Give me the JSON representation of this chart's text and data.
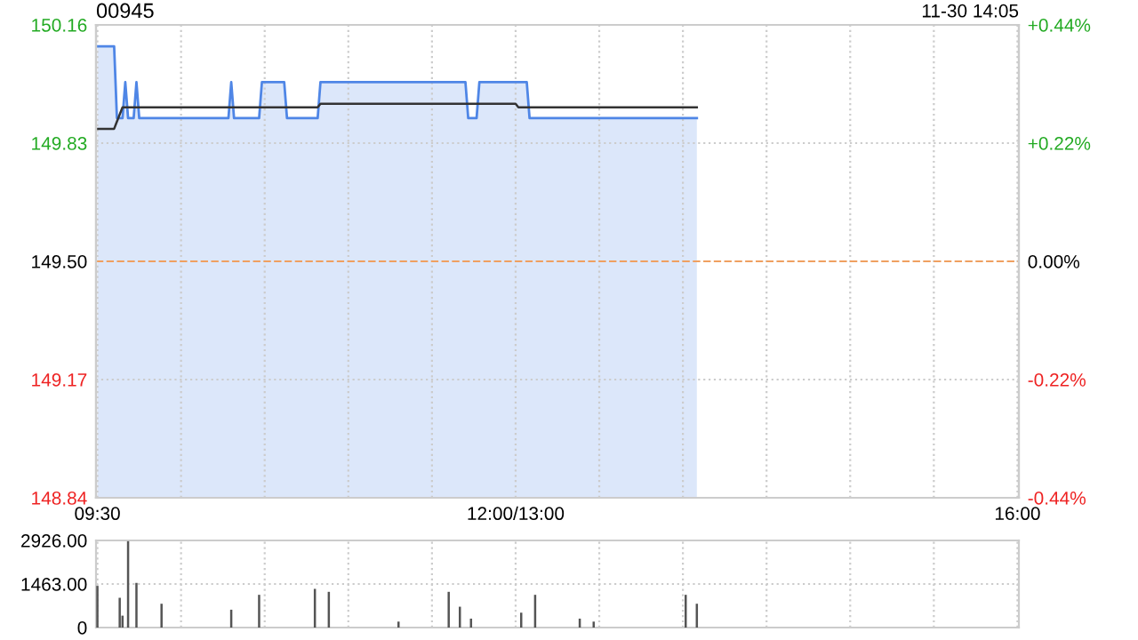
{
  "chart_data": [
    {
      "type": "line",
      "title": "00945",
      "annotations": [
        "11-30 14:05"
      ],
      "categories": [
        "09:30",
        null,
        null,
        null,
        null,
        null,
        null,
        null,
        null,
        null,
        null,
        null,
        null,
        null,
        null,
        null,
        null,
        null,
        null,
        null,
        null,
        null,
        null,
        null,
        null,
        null,
        null,
        null,
        null,
        null,
        null,
        null,
        null,
        null,
        null,
        null,
        null,
        null,
        null,
        null,
        null,
        null,
        null,
        null,
        null,
        null,
        null,
        null,
        null,
        null,
        null,
        null,
        null,
        null,
        null,
        null,
        null,
        null,
        null,
        null,
        null,
        null,
        null,
        null,
        null,
        null,
        null,
        null,
        null,
        null,
        null,
        null,
        null,
        null,
        null,
        null,
        null,
        null,
        null,
        null,
        null,
        null,
        null,
        null,
        null,
        null,
        null,
        null,
        null,
        null,
        null,
        null,
        null,
        null,
        null,
        null,
        null,
        null,
        null,
        null,
        null,
        null,
        null,
        null,
        null,
        null,
        null,
        null,
        null,
        null,
        null,
        null,
        null,
        null,
        null,
        null,
        null,
        null,
        null,
        null,
        null,
        null,
        null,
        null,
        null,
        null,
        null,
        null,
        null,
        null,
        null,
        null,
        null,
        null,
        null,
        null,
        null,
        null,
        null,
        null,
        null,
        null,
        null,
        null,
        null,
        null,
        null,
        null,
        null,
        null,
        "12:00/13:00",
        null,
        null,
        null,
        null,
        null,
        null,
        null,
        null,
        null,
        null,
        null,
        null,
        null,
        null,
        null,
        null,
        null,
        null,
        null,
        null,
        null,
        null,
        null,
        null,
        null,
        null,
        null,
        null,
        null,
        null,
        null,
        null,
        null,
        null,
        null,
        null,
        null,
        null,
        null,
        null,
        null,
        null,
        null,
        null,
        null,
        null,
        null,
        null,
        null,
        null,
        null,
        null,
        null,
        null,
        null,
        null,
        null,
        null,
        null,
        null,
        null,
        null,
        null,
        null,
        null,
        null,
        null,
        null,
        null,
        null,
        null,
        null,
        null,
        null,
        null,
        null,
        null,
        null,
        null,
        null,
        null,
        null,
        null,
        null,
        null,
        null,
        null,
        null,
        null,
        null,
        null,
        null,
        null,
        null,
        null,
        null,
        null,
        null,
        null,
        null,
        null,
        null,
        null,
        null,
        null,
        null,
        null,
        null,
        null,
        null,
        null,
        null,
        null,
        null,
        null,
        null,
        null,
        null,
        null,
        null,
        null,
        null,
        null,
        null,
        null,
        null,
        null,
        null,
        null,
        null,
        null,
        null,
        null,
        null,
        null,
        null,
        null,
        null,
        null,
        null,
        null,
        null,
        null,
        null,
        null,
        null,
        null,
        null,
        null,
        null,
        null,
        null,
        null,
        null,
        null,
        null,
        null,
        null,
        null,
        null,
        null,
        null,
        null,
        null,
        null,
        null,
        null,
        null,
        null,
        null,
        null,
        null,
        null,
        null,
        null,
        null,
        null,
        null,
        null,
        "16:00"
      ],
      "ylim": [
        148.84,
        150.16
      ],
      "yticks": [
        {
          "value": 148.84,
          "label": "148.84"
        },
        {
          "value": 149.17,
          "label": "149.17"
        },
        {
          "value": 149.5,
          "label": "149.50"
        },
        {
          "value": 149.83,
          "label": "149.83"
        },
        {
          "value": 150.16,
          "label": "150.16"
        }
      ],
      "y2lim": [
        -0.44,
        0.44
      ],
      "y2ticks": [
        {
          "value": -0.44,
          "label": "-0.44%"
        },
        {
          "value": -0.22,
          "label": "-0.22%"
        },
        {
          "value": 0,
          "label": "0.00%"
        },
        {
          "value": 0.22,
          "label": "+0.22%"
        },
        {
          "value": 0.44,
          "label": "+0.44%"
        }
      ],
      "grid": true,
      "ref_lines": [
        {
          "axis": "y",
          "value": 149.5,
          "color": "#f0a060",
          "line_style": "dashed"
        }
      ],
      "series": [
        {
          "type": "area",
          "color": "#4f86e6",
          "values": [
            150.1,
            150.1,
            150.1,
            150.1,
            150.1,
            150.1,
            150.1,
            149.9,
            149.9,
            149.9,
            150.0,
            149.9,
            149.9,
            149.9,
            150.0,
            149.9,
            149.9,
            149.9,
            149.9,
            149.9,
            149.9,
            149.9,
            149.9,
            149.9,
            149.9,
            149.9,
            149.9,
            149.9,
            149.9,
            149.9,
            149.9,
            149.9,
            149.9,
            149.9,
            149.9,
            149.9,
            149.9,
            149.9,
            149.9,
            149.9,
            149.9,
            149.9,
            149.9,
            149.9,
            149.9,
            149.9,
            149.9,
            149.9,
            150.0,
            149.9,
            149.9,
            149.9,
            149.9,
            149.9,
            149.9,
            149.9,
            149.9,
            149.9,
            149.9,
            150.0,
            150.0,
            150.0,
            150.0,
            150.0,
            150.0,
            150.0,
            150.0,
            150.0,
            149.9,
            149.9,
            149.9,
            149.9,
            149.9,
            149.9,
            149.9,
            149.9,
            149.9,
            149.9,
            149.9,
            149.9,
            150.0,
            150.0,
            150.0,
            150.0,
            150.0,
            150.0,
            150.0,
            150.0,
            150.0,
            150.0,
            150.0,
            150.0,
            150.0,
            150.0,
            150.0,
            150.0,
            150.0,
            150.0,
            150.0,
            150.0,
            150.0,
            150.0,
            150.0,
            150.0,
            150.0,
            150.0,
            150.0,
            150.0,
            150.0,
            150.0,
            150.0,
            150.0,
            150.0,
            150.0,
            150.0,
            150.0,
            150.0,
            150.0,
            150.0,
            150.0,
            150.0,
            150.0,
            150.0,
            150.0,
            150.0,
            150.0,
            150.0,
            150.0,
            150.0,
            150.0,
            150.0,
            150.0,
            150.0,
            149.9,
            149.9,
            149.9,
            149.9,
            150.0,
            150.0,
            150.0,
            150.0,
            150.0,
            150.0,
            150.0,
            150.0,
            150.0,
            150.0,
            150.0,
            150.0,
            150.0,
            150.0,
            150.0,
            150.0,
            150.0,
            150.0,
            149.9,
            149.9,
            149.9,
            149.9,
            149.9,
            149.9,
            149.9,
            149.9,
            149.9,
            149.9,
            149.9,
            149.9,
            149.9,
            149.9,
            149.9,
            149.9,
            149.9,
            149.9,
            149.9,
            149.9,
            149.9,
            149.9,
            149.9,
            149.9,
            149.9,
            149.9,
            149.9,
            149.9,
            149.9,
            149.9,
            149.9,
            149.9,
            149.9,
            149.9,
            149.9,
            149.9,
            149.9,
            149.9,
            149.9,
            149.9,
            149.9,
            149.9,
            149.9,
            149.9,
            149.9,
            149.9,
            149.9,
            149.9,
            149.9,
            149.9,
            149.9,
            149.9,
            149.9,
            149.9,
            149.9,
            149.9,
            149.9,
            149.9,
            149.9,
            149.9,
            149.9,
            null,
            null,
            null,
            null,
            null,
            null,
            null,
            null,
            null,
            null,
            null,
            null,
            null,
            null,
            null,
            null,
            null,
            null,
            null,
            null,
            null,
            null,
            null,
            null,
            null,
            null,
            null,
            null,
            null,
            null,
            null,
            null,
            null,
            null,
            null,
            null,
            null,
            null,
            null,
            null,
            null,
            null,
            null,
            null,
            null,
            null,
            null,
            null,
            null,
            null,
            null,
            null,
            null,
            null,
            null,
            null,
            null,
            null,
            null,
            null,
            null,
            null,
            null,
            null,
            null,
            null,
            null,
            null,
            null,
            null,
            null,
            null,
            null,
            null,
            null,
            null,
            null,
            null,
            null,
            null,
            null,
            null,
            null,
            null,
            null,
            null,
            null,
            null,
            null,
            null,
            null,
            null,
            null,
            null,
            null,
            null,
            null,
            null,
            null,
            null,
            null,
            null,
            null,
            null,
            null,
            null,
            null,
            null,
            null,
            null,
            null,
            null,
            null,
            null,
            null
          ]
        },
        {
          "type": "line",
          "color": "#333333",
          "values": [
            149.87,
            149.87,
            149.87,
            149.87,
            149.87,
            149.87,
            149.87,
            149.89,
            149.91,
            149.93,
            149.93,
            149.93,
            149.93,
            149.93,
            149.93,
            149.93,
            149.93,
            149.93,
            149.93,
            149.93,
            149.93,
            149.93,
            149.93,
            149.93,
            149.93,
            149.93,
            149.93,
            149.93,
            149.93,
            149.93,
            149.93,
            149.93,
            149.93,
            149.93,
            149.93,
            149.93,
            149.93,
            149.93,
            149.93,
            149.93,
            149.93,
            149.93,
            149.93,
            149.93,
            149.93,
            149.93,
            149.93,
            149.93,
            149.93,
            149.93,
            149.93,
            149.93,
            149.93,
            149.93,
            149.93,
            149.93,
            149.93,
            149.93,
            149.93,
            149.93,
            149.93,
            149.93,
            149.93,
            149.93,
            149.93,
            149.93,
            149.93,
            149.93,
            149.93,
            149.93,
            149.93,
            149.93,
            149.93,
            149.93,
            149.93,
            149.93,
            149.93,
            149.93,
            149.93,
            149.93,
            149.94,
            149.94,
            149.94,
            149.94,
            149.94,
            149.94,
            149.94,
            149.94,
            149.94,
            149.94,
            149.94,
            149.94,
            149.94,
            149.94,
            149.94,
            149.94,
            149.94,
            149.94,
            149.94,
            149.94,
            149.94,
            149.94,
            149.94,
            149.94,
            149.94,
            149.94,
            149.94,
            149.94,
            149.94,
            149.94,
            149.94,
            149.94,
            149.94,
            149.94,
            149.94,
            149.94,
            149.94,
            149.94,
            149.94,
            149.94,
            149.94,
            149.94,
            149.94,
            149.94,
            149.94,
            149.94,
            149.94,
            149.94,
            149.94,
            149.94,
            149.94,
            149.94,
            149.94,
            149.94,
            149.94,
            149.94,
            149.94,
            149.94,
            149.94,
            149.94,
            149.94,
            149.94,
            149.94,
            149.94,
            149.94,
            149.94,
            149.94,
            149.94,
            149.94,
            149.94,
            149.94,
            149.93,
            149.93,
            149.93,
            149.93,
            149.93,
            149.93,
            149.93,
            149.93,
            149.93,
            149.93,
            149.93,
            149.93,
            149.93,
            149.93,
            149.93,
            149.93,
            149.93,
            149.93,
            149.93,
            149.93,
            149.93,
            149.93,
            149.93,
            149.93,
            149.93,
            149.93,
            149.93,
            149.93,
            149.93,
            149.93,
            149.93,
            149.93,
            149.93,
            149.93,
            149.93,
            149.93,
            149.93,
            149.93,
            149.93,
            149.93,
            149.93,
            149.93,
            149.93,
            149.93,
            149.93,
            149.93,
            149.93,
            149.93,
            149.93,
            149.93,
            149.93,
            149.93,
            149.93,
            149.93,
            149.93,
            149.93,
            149.93,
            149.93,
            149.93,
            149.93,
            149.93,
            149.93,
            149.93,
            149.93,
            149.93,
            null,
            null,
            null,
            null,
            null,
            null,
            null,
            null,
            null,
            null,
            null,
            null,
            null,
            null,
            null,
            null,
            null,
            null,
            null,
            null,
            null,
            null,
            null,
            null,
            null,
            null,
            null,
            null,
            null,
            null,
            null,
            null,
            null,
            null,
            null,
            null,
            null,
            null,
            null,
            null,
            null,
            null,
            null,
            null,
            null,
            null,
            null,
            null,
            null,
            null,
            null,
            null,
            null,
            null,
            null,
            null,
            null,
            null,
            null,
            null,
            null,
            null,
            null,
            null,
            null,
            null,
            null,
            null,
            null,
            null,
            null,
            null,
            null,
            null,
            null,
            null,
            null,
            null,
            null,
            null,
            null,
            null,
            null,
            null,
            null,
            null,
            null,
            null,
            null,
            null,
            null,
            null,
            null,
            null,
            null,
            null,
            null,
            null,
            null,
            null,
            null,
            null,
            null,
            null,
            null,
            null,
            null,
            null,
            null,
            null,
            null,
            null,
            null,
            null,
            null
          ]
        }
      ]
    },
    {
      "type": "bar",
      "color": "#555555",
      "ylim": [
        0,
        2926
      ],
      "yticks": [
        {
          "value": 0,
          "label": "0"
        },
        {
          "value": 1463,
          "label": "1463.00"
        },
        {
          "value": 2926,
          "label": "2926.00"
        }
      ],
      "grid": true,
      "tick_labels": "y",
      "categories": [
        null,
        null,
        null,
        null,
        null,
        null,
        null,
        null,
        null,
        null,
        null,
        null,
        null,
        null,
        null,
        null,
        null,
        null,
        null,
        null,
        null,
        null,
        null,
        null,
        null,
        null,
        null,
        null,
        null,
        null,
        null,
        null,
        null,
        null,
        null,
        null,
        null,
        null,
        null,
        null,
        null,
        null,
        null,
        null,
        null,
        null,
        null,
        null,
        null,
        null,
        null,
        null,
        null,
        null,
        null,
        null,
        null,
        null,
        null,
        null,
        null,
        null,
        null,
        null,
        null,
        null,
        null,
        null,
        null,
        null,
        null,
        null,
        null,
        null,
        null,
        null,
        null,
        null,
        null,
        null,
        null,
        null,
        null,
        null,
        null,
        null,
        null,
        null,
        null,
        null,
        null,
        null,
        null,
        null,
        null,
        null,
        null,
        null,
        null,
        null,
        null,
        null,
        null,
        null,
        null,
        null,
        null,
        null,
        null,
        null,
        null,
        null,
        null,
        null,
        null,
        null,
        null,
        null,
        null,
        null,
        null,
        null,
        null,
        null,
        null,
        null,
        null,
        null,
        null,
        null,
        null,
        null,
        null,
        null,
        null,
        null,
        null,
        null,
        null,
        null,
        null,
        null,
        null,
        null,
        null,
        null,
        null,
        null,
        null,
        null,
        null,
        null,
        null,
        null,
        null,
        null,
        null,
        null,
        null,
        null,
        null,
        null,
        null,
        null,
        null,
        null,
        null,
        null,
        null,
        null,
        null,
        null,
        null,
        null,
        null,
        null,
        null,
        null,
        null,
        null,
        null,
        null,
        null,
        null,
        null,
        null,
        null,
        null,
        null,
        null,
        null,
        null,
        null,
        null,
        null,
        null,
        null,
        null,
        null,
        null,
        null,
        null,
        null,
        null,
        null,
        null,
        null,
        null,
        null,
        null,
        null,
        null,
        null,
        null,
        null,
        null,
        null,
        null,
        null,
        null,
        null,
        null,
        null,
        null,
        null,
        null,
        null,
        null,
        null,
        null,
        null,
        null,
        null,
        null,
        null,
        null,
        null,
        null,
        null,
        null,
        null,
        null,
        null,
        null,
        null,
        null,
        null,
        null,
        null,
        null,
        null,
        null,
        null,
        null,
        null,
        null,
        null,
        null,
        null,
        null,
        null,
        null,
        null,
        null,
        null,
        null,
        null,
        null,
        null,
        null,
        null,
        null,
        null,
        null,
        null,
        null,
        null,
        null,
        null,
        null,
        null,
        null,
        null,
        null,
        null,
        null,
        null,
        null,
        null,
        null,
        null,
        null,
        null,
        null,
        null,
        null,
        null,
        null,
        null,
        null,
        null,
        null,
        null,
        null,
        null,
        null,
        null,
        null,
        null,
        null,
        null,
        null,
        null,
        null,
        null,
        null,
        null,
        null,
        null,
        null,
        null,
        null,
        null,
        null,
        null,
        null,
        null,
        null,
        null,
        null,
        null
      ],
      "values": [
        1400,
        0,
        0,
        0,
        0,
        0,
        0,
        0,
        1000,
        400,
        0,
        2900,
        0,
        0,
        1500,
        0,
        0,
        0,
        0,
        0,
        0,
        0,
        0,
        800,
        0,
        0,
        0,
        0,
        0,
        0,
        0,
        0,
        0,
        0,
        0,
        0,
        0,
        0,
        0,
        0,
        0,
        0,
        0,
        0,
        0,
        0,
        0,
        0,
        600,
        0,
        0,
        0,
        0,
        0,
        0,
        0,
        0,
        0,
        1100,
        0,
        0,
        0,
        0,
        0,
        0,
        0,
        0,
        0,
        0,
        0,
        0,
        0,
        0,
        0,
        0,
        0,
        0,
        0,
        1300,
        0,
        0,
        0,
        0,
        1200,
        0,
        0,
        0,
        0,
        0,
        0,
        0,
        0,
        0,
        0,
        0,
        0,
        0,
        0,
        0,
        0,
        0,
        0,
        0,
        0,
        0,
        0,
        0,
        0,
        200,
        0,
        0,
        0,
        0,
        0,
        0,
        0,
        0,
        0,
        0,
        0,
        0,
        0,
        0,
        0,
        0,
        0,
        1200,
        0,
        0,
        0,
        700,
        0,
        0,
        0,
        300,
        0,
        0,
        0,
        0,
        0,
        0,
        0,
        0,
        0,
        0,
        0,
        0,
        0,
        0,
        0,
        0,
        0,
        500,
        0,
        0,
        0,
        0,
        1100,
        0,
        0,
        0,
        0,
        0,
        0,
        0,
        0,
        0,
        0,
        0,
        0,
        0,
        0,
        0,
        300,
        0,
        0,
        0,
        0,
        200,
        0,
        0,
        0,
        0,
        0,
        0,
        0,
        0,
        0,
        0,
        0,
        0,
        0,
        0,
        0,
        0,
        0,
        0,
        0,
        0,
        0,
        0,
        0,
        0,
        0,
        0,
        0,
        0,
        0,
        0,
        0,
        0,
        1100,
        0,
        0,
        0,
        800,
        null,
        null,
        null,
        null,
        null,
        null,
        null,
        null,
        null,
        null,
        null,
        null,
        null,
        null,
        null,
        null,
        null,
        null,
        null,
        null,
        null,
        null,
        null,
        null,
        null,
        null,
        null,
        null,
        null,
        null,
        null,
        null,
        null,
        null,
        null,
        null,
        null,
        null,
        null,
        null,
        null,
        null,
        null,
        null,
        null,
        null,
        null,
        null,
        null,
        null,
        null,
        null,
        null,
        null,
        null,
        null,
        null,
        null,
        null,
        null,
        null,
        null,
        null,
        null,
        null,
        null,
        null,
        null,
        null,
        null,
        null,
        null,
        null,
        null,
        null,
        null,
        null,
        null,
        null,
        null,
        null,
        null,
        null,
        null,
        null,
        null,
        null,
        null,
        null,
        null,
        null,
        null,
        null,
        null,
        null,
        null,
        null,
        null,
        null,
        null,
        null,
        null,
        null,
        null,
        null,
        null,
        null,
        null,
        null,
        null,
        null,
        null,
        null,
        null,
        null
      ]
    }
  ]
}
